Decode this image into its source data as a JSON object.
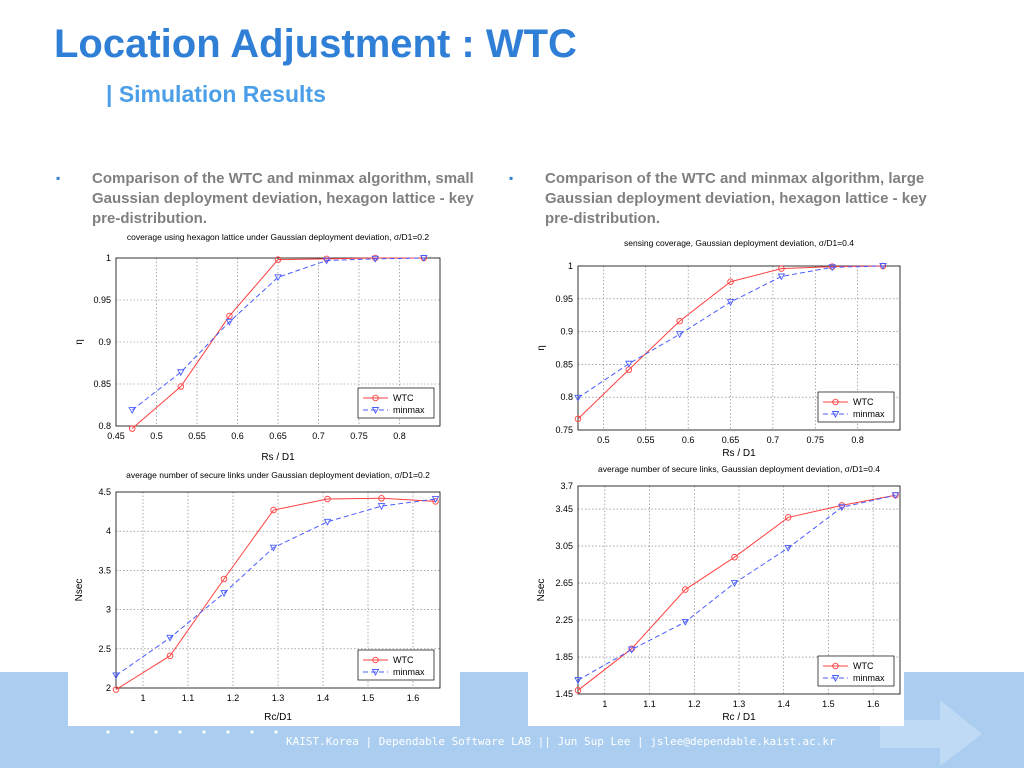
{
  "header": {
    "title": "Location Adjustment : WTC",
    "subtitle_bar": "|",
    "subtitle": "Simulation Results"
  },
  "bullets": [
    {
      "marker": "▪",
      "text": "Comparison of the WTC and minmax algorithm, small Gaussian deployment deviation, hexagon lattice - key pre-distribution."
    },
    {
      "marker": "▪",
      "text": "Comparison of the WTC and minmax algorithm, large Gaussian deployment deviation, hexagon lattice - key pre-distribution."
    }
  ],
  "footer": {
    "text": "KAIST.Korea | Dependable Software LAB || Jun Sup Lee | jslee@dependable.kaist.ac.kr"
  },
  "colors": {
    "title": "#2f7fd6",
    "subtitle": "#4a9fe8",
    "wtc": "#ff4040",
    "minmax": "#4a5cff",
    "footer_band": "#aacdf0"
  },
  "chart_data": [
    {
      "type": "line",
      "title": "coverage using hexagon lattice under Gaussian deployment deviation, σ/D1=0.2",
      "xlabel": "Rs / D1",
      "ylabel": "η",
      "xlim": [
        0.45,
        0.85
      ],
      "ylim": [
        0.8,
        1.0
      ],
      "xticks": [
        "0.45",
        "0.5",
        "0.55",
        "0.6",
        "0.65",
        "0.7",
        "0.75",
        "0.8"
      ],
      "yticks": [
        "0.8",
        "0.85",
        "0.9",
        "0.95",
        "1"
      ],
      "grid": true,
      "legend": "bottom-right",
      "series": [
        {
          "name": "WTC",
          "marker": "o",
          "x": [
            0.47,
            0.53,
            0.59,
            0.65,
            0.71,
            0.77,
            0.83
          ],
          "y": [
            0.797,
            0.847,
            0.931,
            0.998,
            0.999,
            1.0,
            1.0
          ]
        },
        {
          "name": "minmax",
          "marker": "v",
          "x": [
            0.47,
            0.53,
            0.59,
            0.65,
            0.71,
            0.77,
            0.83
          ],
          "y": [
            0.819,
            0.864,
            0.924,
            0.977,
            0.997,
            0.999,
            1.0
          ]
        }
      ]
    },
    {
      "type": "line",
      "title": "average number of secure links under Gaussian deployment deviation, σ/D1=0.2",
      "xlabel": "Rc/D1",
      "ylabel": "Nsec",
      "xlim": [
        0.94,
        1.66
      ],
      "ylim": [
        2.0,
        4.5
      ],
      "xticks": [
        "1",
        "1.1",
        "1.2",
        "1.3",
        "1.4",
        "1.5",
        "1.6"
      ],
      "yticks": [
        "2",
        "2.5",
        "3",
        "3.5",
        "4",
        "4.5"
      ],
      "grid": true,
      "legend": "bottom-right",
      "series": [
        {
          "name": "WTC",
          "marker": "o",
          "x": [
            0.94,
            1.06,
            1.18,
            1.29,
            1.41,
            1.53,
            1.65
          ],
          "y": [
            1.98,
            2.41,
            3.39,
            4.27,
            4.41,
            4.42,
            4.38
          ]
        },
        {
          "name": "minmax",
          "marker": "v",
          "x": [
            0.94,
            1.06,
            1.18,
            1.29,
            1.41,
            1.53,
            1.65
          ],
          "y": [
            2.16,
            2.64,
            3.21,
            3.79,
            4.12,
            4.32,
            4.41
          ]
        }
      ]
    },
    {
      "type": "line",
      "title": "sensing coverage, Gaussian deployment deviation, σ/D1=0.4",
      "xlabel": "Rs / D1",
      "ylabel": "η",
      "xlim": [
        0.47,
        0.85
      ],
      "ylim": [
        0.75,
        1.0
      ],
      "xticks": [
        "0.5",
        "0.55",
        "0.6",
        "0.65",
        "0.7",
        "0.75",
        "0.8"
      ],
      "yticks": [
        "0.75",
        "0.8",
        "0.85",
        "0.9",
        "0.95",
        "1"
      ],
      "grid": true,
      "legend": "bottom-right",
      "series": [
        {
          "name": "WTC",
          "marker": "o",
          "x": [
            0.47,
            0.53,
            0.59,
            0.65,
            0.71,
            0.77,
            0.83
          ],
          "y": [
            0.767,
            0.842,
            0.916,
            0.976,
            0.996,
            0.999,
            1.0
          ]
        },
        {
          "name": "minmax",
          "marker": "v",
          "x": [
            0.47,
            0.53,
            0.59,
            0.65,
            0.71,
            0.77,
            0.83
          ],
          "y": [
            0.799,
            0.851,
            0.896,
            0.945,
            0.984,
            0.998,
            1.0
          ]
        }
      ]
    },
    {
      "type": "line",
      "title": "average number of secure links, Gaussian deployment deviation, σ/D1=0.4",
      "xlabel": "Rc / D1",
      "ylabel": "Nsec",
      "xlim": [
        0.94,
        1.66
      ],
      "ylim": [
        1.45,
        3.7
      ],
      "xticks": [
        "1",
        "1.1",
        "1.2",
        "1.3",
        "1.4",
        "1.5",
        "1.6"
      ],
      "yticks": [
        "1.45",
        "1.85",
        "2.25",
        "2.65",
        "3.05",
        "3.45",
        "3.7"
      ],
      "grid": true,
      "legend": "bottom-right",
      "series": [
        {
          "name": "WTC",
          "marker": "o",
          "x": [
            0.94,
            1.06,
            1.18,
            1.29,
            1.41,
            1.53,
            1.65
          ],
          "y": [
            1.49,
            1.94,
            2.58,
            2.93,
            3.36,
            3.49,
            3.6
          ]
        },
        {
          "name": "minmax",
          "marker": "v",
          "x": [
            0.94,
            1.06,
            1.18,
            1.29,
            1.41,
            1.53,
            1.65
          ],
          "y": [
            1.6,
            1.93,
            2.23,
            2.65,
            3.03,
            3.47,
            3.6
          ]
        }
      ]
    }
  ]
}
